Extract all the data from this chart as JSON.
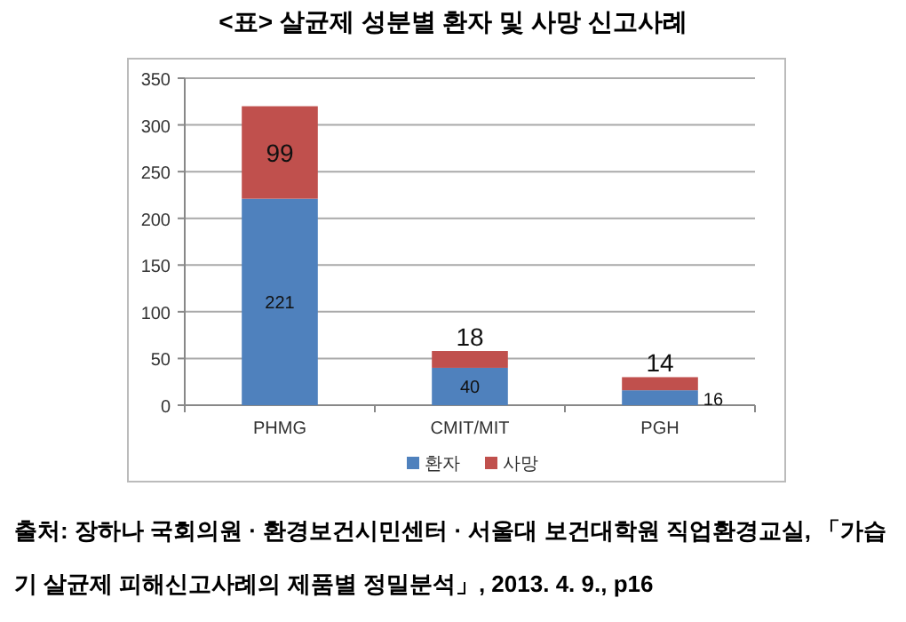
{
  "chart_data": {
    "type": "bar",
    "title": "<표> 살균제 성분별 환자 및 사망 신고사례",
    "categories": [
      "PHMG",
      "CMIT/MIT",
      "PGH"
    ],
    "series": [
      {
        "name": "환자",
        "color": "#4f81bd",
        "values": [
          221,
          40,
          16
        ]
      },
      {
        "name": "사망",
        "color": "#c0504d",
        "values": [
          99,
          18,
          14
        ]
      }
    ],
    "stacked": true,
    "ylim": [
      0,
      350
    ],
    "yticks": [
      0,
      50,
      100,
      150,
      200,
      250,
      300,
      350
    ],
    "grid": "y",
    "legend": "bottom",
    "data_labels": true,
    "annotations": [
      "출처: 장하나 국회의원 · 환경보건시민센터 · 서울대 보건대학원 직업환경교실, 「가습기 살균제 피해신고사례의 제품별 정밀분석」, 2013. 4. 9., p16"
    ]
  }
}
